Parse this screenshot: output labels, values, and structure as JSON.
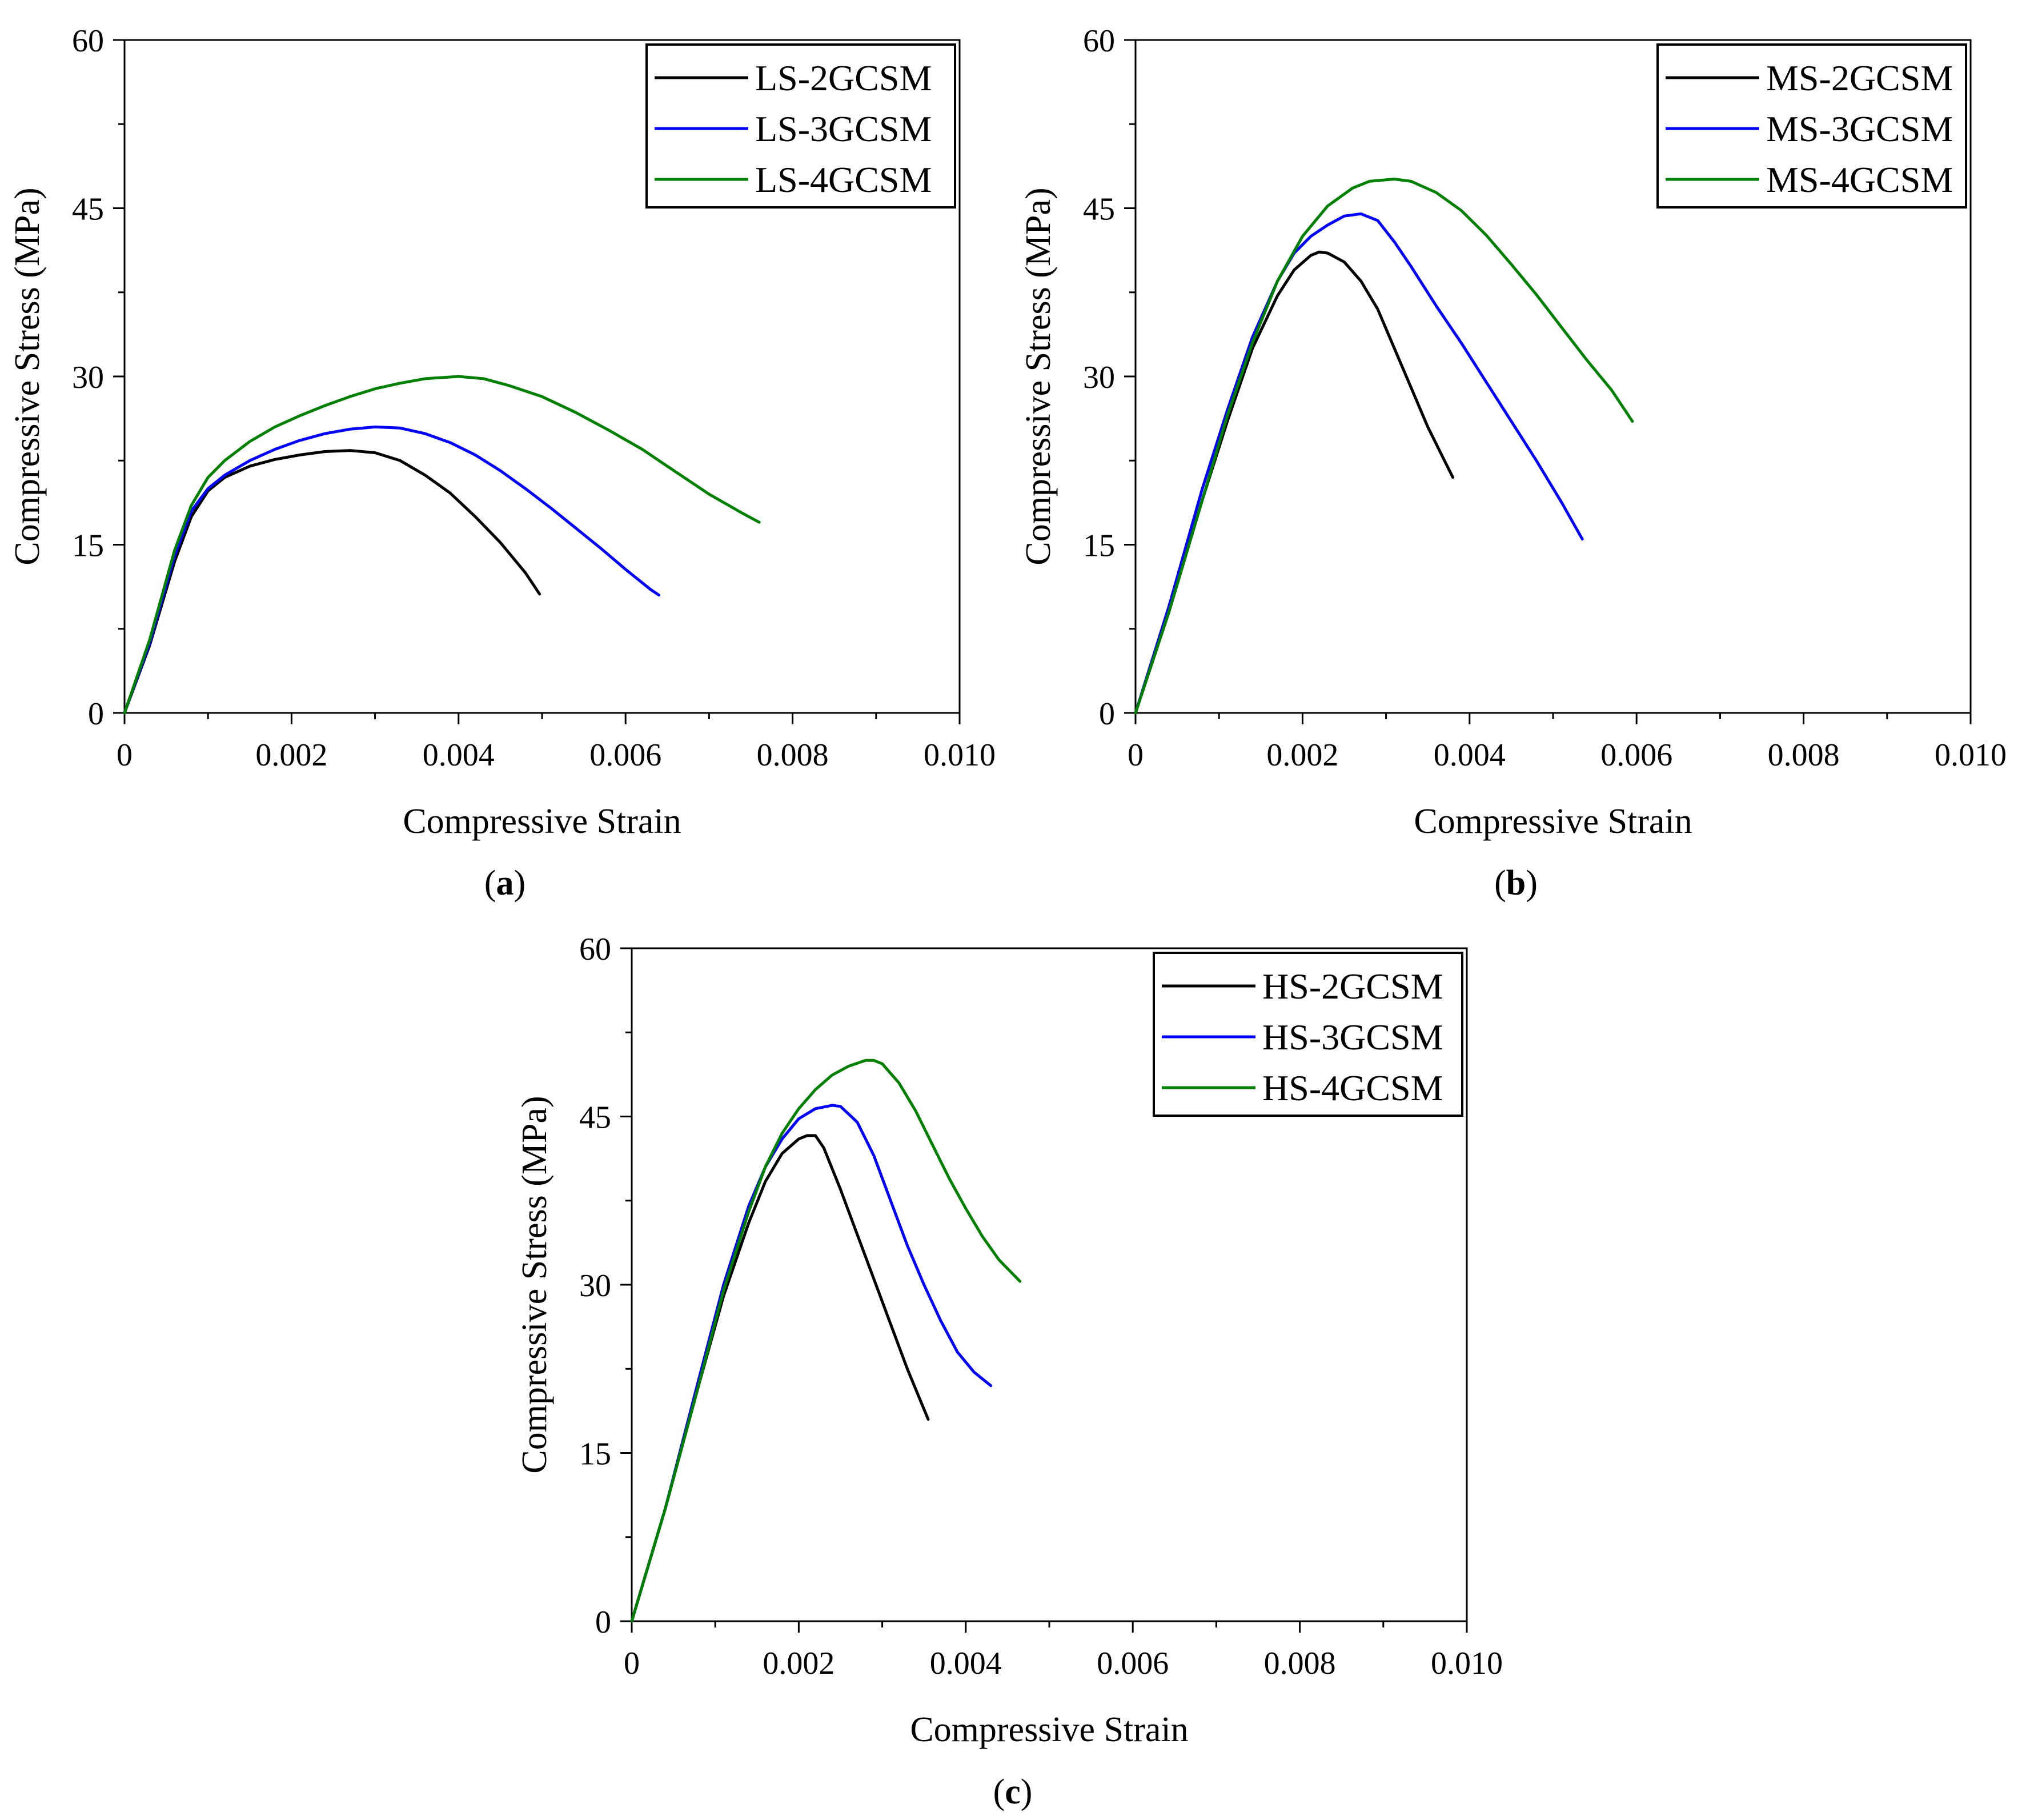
{
  "figure": {
    "background": "#ffffff"
  },
  "chart_data": [
    {
      "id": "a",
      "type": "line",
      "caption_letter": "a",
      "xlabel": "Compressive Strain",
      "ylabel": "Compressive Stress (MPa)",
      "xlim": [
        0,
        0.01
      ],
      "ylim": [
        0,
        60
      ],
      "xticks": [
        0,
        0.002,
        0.004,
        0.006,
        0.008,
        0.01
      ],
      "xtick_labels": [
        "0",
        "0.002",
        "0.004",
        "0.006",
        "0.008",
        "0.010"
      ],
      "yticks": [
        0,
        15,
        30,
        45,
        60
      ],
      "ytick_labels": [
        "0",
        "15",
        "30",
        "45",
        "60"
      ],
      "grid": false,
      "legend_position": "top-right",
      "series": [
        {
          "name": "LS-2GCSM",
          "color": "#000000",
          "points": [
            [
              0,
              0
            ],
            [
              0.0003,
              6
            ],
            [
              0.0006,
              13.5
            ],
            [
              0.0008,
              17.5
            ],
            [
              0.001,
              19.8
            ],
            [
              0.0012,
              21
            ],
            [
              0.0015,
              22
            ],
            [
              0.0018,
              22.6
            ],
            [
              0.0021,
              23
            ],
            [
              0.0024,
              23.3
            ],
            [
              0.0027,
              23.4
            ],
            [
              0.003,
              23.2
            ],
            [
              0.0033,
              22.5
            ],
            [
              0.0036,
              21.2
            ],
            [
              0.0039,
              19.6
            ],
            [
              0.0042,
              17.5
            ],
            [
              0.0045,
              15.2
            ],
            [
              0.0048,
              12.5
            ],
            [
              0.00497,
              10.6
            ]
          ]
        },
        {
          "name": "LS-3GCSM",
          "color": "#0000ff",
          "points": [
            [
              0,
              0
            ],
            [
              0.0003,
              6.2
            ],
            [
              0.0006,
              14
            ],
            [
              0.0008,
              18
            ],
            [
              0.001,
              20
            ],
            [
              0.0012,
              21.2
            ],
            [
              0.0015,
              22.5
            ],
            [
              0.0018,
              23.5
            ],
            [
              0.0021,
              24.3
            ],
            [
              0.0024,
              24.9
            ],
            [
              0.0027,
              25.3
            ],
            [
              0.003,
              25.5
            ],
            [
              0.0033,
              25.4
            ],
            [
              0.0036,
              24.9
            ],
            [
              0.0039,
              24.1
            ],
            [
              0.0042,
              23
            ],
            [
              0.0045,
              21.6
            ],
            [
              0.0048,
              20
            ],
            [
              0.0051,
              18.3
            ],
            [
              0.0054,
              16.5
            ],
            [
              0.0057,
              14.7
            ],
            [
              0.006,
              12.8
            ],
            [
              0.0063,
              11
            ],
            [
              0.0064,
              10.5
            ]
          ]
        },
        {
          "name": "LS-4GCSM",
          "color": "#008000",
          "points": [
            [
              0,
              0
            ],
            [
              0.0003,
              6.5
            ],
            [
              0.0006,
              14.5
            ],
            [
              0.0008,
              18.5
            ],
            [
              0.001,
              21
            ],
            [
              0.0012,
              22.5
            ],
            [
              0.0015,
              24.2
            ],
            [
              0.0018,
              25.5
            ],
            [
              0.0021,
              26.5
            ],
            [
              0.0024,
              27.4
            ],
            [
              0.0027,
              28.2
            ],
            [
              0.003,
              28.9
            ],
            [
              0.0033,
              29.4
            ],
            [
              0.0036,
              29.8
            ],
            [
              0.004,
              30
            ],
            [
              0.0043,
              29.8
            ],
            [
              0.0046,
              29.2
            ],
            [
              0.005,
              28.2
            ],
            [
              0.0054,
              26.8
            ],
            [
              0.0058,
              25.2
            ],
            [
              0.0062,
              23.5
            ],
            [
              0.0066,
              21.5
            ],
            [
              0.007,
              19.5
            ],
            [
              0.0074,
              17.8
            ],
            [
              0.0076,
              17
            ]
          ]
        }
      ]
    },
    {
      "id": "b",
      "type": "line",
      "caption_letter": "b",
      "xlabel": "Compressive Strain",
      "ylabel": "Compressive Stress (MPa)",
      "xlim": [
        0,
        0.01
      ],
      "ylim": [
        0,
        60
      ],
      "xticks": [
        0,
        0.002,
        0.004,
        0.006,
        0.008,
        0.01
      ],
      "xtick_labels": [
        "0",
        "0.002",
        "0.004",
        "0.006",
        "0.008",
        "0.010"
      ],
      "yticks": [
        0,
        15,
        30,
        45,
        60
      ],
      "ytick_labels": [
        "0",
        "15",
        "30",
        "45",
        "60"
      ],
      "grid": false,
      "legend_position": "top-right",
      "series": [
        {
          "name": "MS-2GCSM",
          "color": "#000000",
          "points": [
            [
              0,
              0
            ],
            [
              0.0004,
              9
            ],
            [
              0.0008,
              19
            ],
            [
              0.0011,
              26
            ],
            [
              0.0014,
              32.5
            ],
            [
              0.0017,
              37.2
            ],
            [
              0.0019,
              39.5
            ],
            [
              0.0021,
              40.8
            ],
            [
              0.0022,
              41.1
            ],
            [
              0.0023,
              41
            ],
            [
              0.0025,
              40.2
            ],
            [
              0.0027,
              38.5
            ],
            [
              0.0029,
              36
            ],
            [
              0.0031,
              32.5
            ],
            [
              0.0033,
              29
            ],
            [
              0.0035,
              25.5
            ],
            [
              0.0037,
              22.5
            ],
            [
              0.0038,
              21
            ]
          ]
        },
        {
          "name": "MS-3GCSM",
          "color": "#0000ff",
          "points": [
            [
              0,
              0
            ],
            [
              0.0004,
              9.5
            ],
            [
              0.0008,
              20
            ],
            [
              0.0011,
              27
            ],
            [
              0.0014,
              33.5
            ],
            [
              0.0017,
              38.5
            ],
            [
              0.0019,
              41
            ],
            [
              0.0021,
              42.5
            ],
            [
              0.0023,
              43.5
            ],
            [
              0.0025,
              44.3
            ],
            [
              0.0027,
              44.5
            ],
            [
              0.0029,
              43.9
            ],
            [
              0.0031,
              42
            ],
            [
              0.0033,
              39.8
            ],
            [
              0.0036,
              36.3
            ],
            [
              0.0039,
              33
            ],
            [
              0.0042,
              29.5
            ],
            [
              0.0045,
              26
            ],
            [
              0.0048,
              22.5
            ],
            [
              0.0051,
              18.8
            ],
            [
              0.00535,
              15.5
            ]
          ]
        },
        {
          "name": "MS-4GCSM",
          "color": "#008000",
          "points": [
            [
              0,
              0
            ],
            [
              0.0004,
              9
            ],
            [
              0.0008,
              19
            ],
            [
              0.0011,
              26.5
            ],
            [
              0.0014,
              33
            ],
            [
              0.0017,
              38.5
            ],
            [
              0.002,
              42.5
            ],
            [
              0.0023,
              45.2
            ],
            [
              0.0026,
              46.8
            ],
            [
              0.0028,
              47.4
            ],
            [
              0.0031,
              47.6
            ],
            [
              0.0033,
              47.4
            ],
            [
              0.0036,
              46.4
            ],
            [
              0.0039,
              44.8
            ],
            [
              0.0042,
              42.6
            ],
            [
              0.0045,
              40
            ],
            [
              0.0048,
              37.3
            ],
            [
              0.0051,
              34.4
            ],
            [
              0.0054,
              31.5
            ],
            [
              0.0057,
              28.8
            ],
            [
              0.00595,
              26
            ]
          ]
        }
      ]
    },
    {
      "id": "c",
      "type": "line",
      "caption_letter": "c",
      "xlabel": "Compressive Strain",
      "ylabel": "Compressive Stress (MPa)",
      "xlim": [
        0,
        0.01
      ],
      "ylim": [
        0,
        60
      ],
      "xticks": [
        0,
        0.002,
        0.004,
        0.006,
        0.008,
        0.01
      ],
      "xtick_labels": [
        "0",
        "0.002",
        "0.004",
        "0.006",
        "0.008",
        "0.010"
      ],
      "yticks": [
        0,
        15,
        30,
        45,
        60
      ],
      "ytick_labels": [
        "0",
        "15",
        "30",
        "45",
        "60"
      ],
      "grid": false,
      "legend_position": "top-right",
      "series": [
        {
          "name": "HS-2GCSM",
          "color": "#000000",
          "points": [
            [
              0,
              0
            ],
            [
              0.0004,
              10
            ],
            [
              0.0008,
              21
            ],
            [
              0.0011,
              29
            ],
            [
              0.0014,
              35.5
            ],
            [
              0.0016,
              39.2
            ],
            [
              0.0018,
              41.7
            ],
            [
              0.002,
              43
            ],
            [
              0.0021,
              43.3
            ],
            [
              0.0022,
              43.3
            ],
            [
              0.0023,
              42.2
            ],
            [
              0.0025,
              38.5
            ],
            [
              0.0027,
              34.5
            ],
            [
              0.0029,
              30.5
            ],
            [
              0.0031,
              26.5
            ],
            [
              0.0033,
              22.5
            ],
            [
              0.00355,
              18
            ]
          ]
        },
        {
          "name": "HS-3GCSM",
          "color": "#0000ff",
          "points": [
            [
              0,
              0
            ],
            [
              0.0004,
              10
            ],
            [
              0.0008,
              21.5
            ],
            [
              0.0011,
              30
            ],
            [
              0.0014,
              37
            ],
            [
              0.0016,
              40.5
            ],
            [
              0.0018,
              43
            ],
            [
              0.002,
              44.8
            ],
            [
              0.0022,
              45.7
            ],
            [
              0.0024,
              46
            ],
            [
              0.0025,
              45.9
            ],
            [
              0.0027,
              44.5
            ],
            [
              0.0029,
              41.5
            ],
            [
              0.0031,
              37.5
            ],
            [
              0.0033,
              33.5
            ],
            [
              0.0035,
              30
            ],
            [
              0.0037,
              26.8
            ],
            [
              0.0039,
              24
            ],
            [
              0.0041,
              22.2
            ],
            [
              0.0043,
              21
            ]
          ]
        },
        {
          "name": "HS-4GCSM",
          "color": "#008000",
          "points": [
            [
              0,
              0
            ],
            [
              0.0004,
              10
            ],
            [
              0.0008,
              21
            ],
            [
              0.0011,
              29.5
            ],
            [
              0.0014,
              36.5
            ],
            [
              0.0016,
              40.5
            ],
            [
              0.0018,
              43.5
            ],
            [
              0.002,
              45.7
            ],
            [
              0.0022,
              47.4
            ],
            [
              0.0024,
              48.7
            ],
            [
              0.0026,
              49.5
            ],
            [
              0.0028,
              50
            ],
            [
              0.0029,
              50
            ],
            [
              0.003,
              49.7
            ],
            [
              0.0032,
              48
            ],
            [
              0.0034,
              45.5
            ],
            [
              0.0036,
              42.5
            ],
            [
              0.0038,
              39.5
            ],
            [
              0.004,
              36.8
            ],
            [
              0.0042,
              34.3
            ],
            [
              0.0044,
              32.2
            ],
            [
              0.00465,
              30.3
            ]
          ]
        }
      ]
    }
  ]
}
